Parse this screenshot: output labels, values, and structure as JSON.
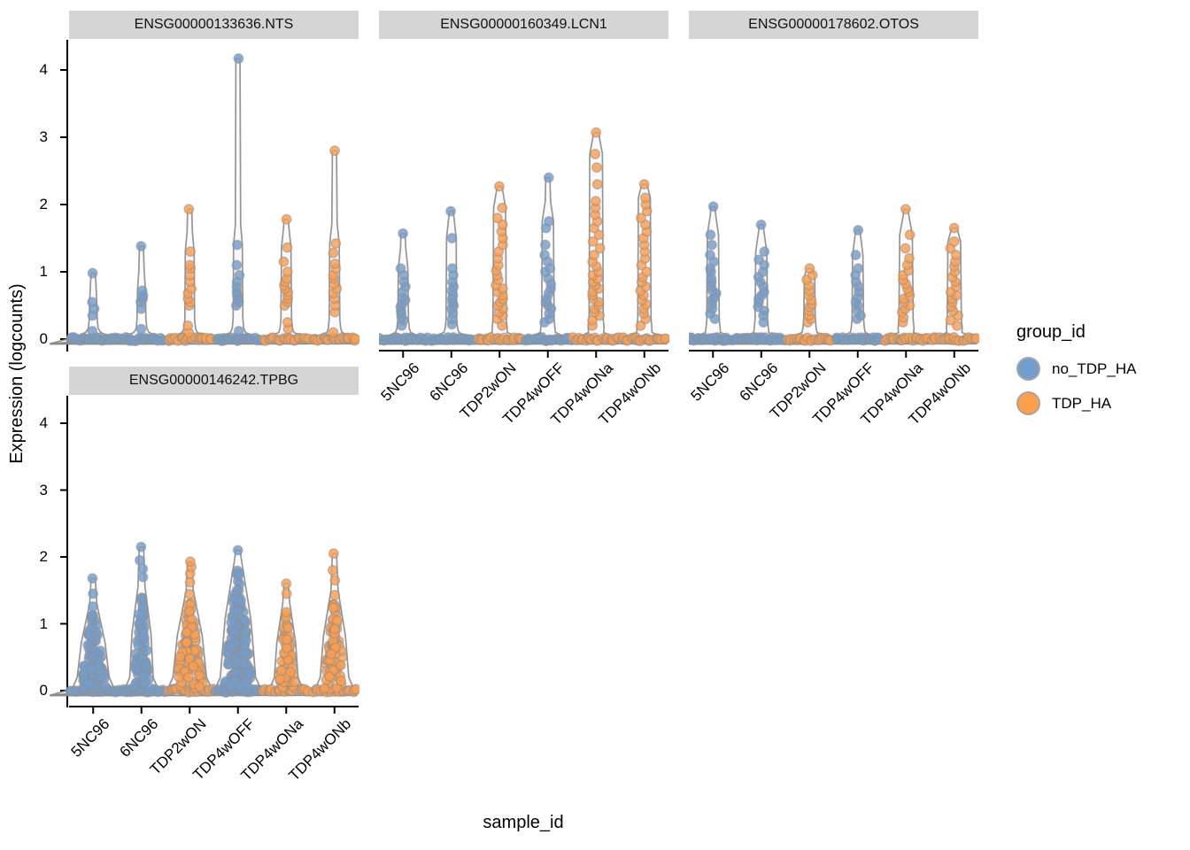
{
  "figure": {
    "background": "#ffffff"
  },
  "chart_data": {
    "type": "violin-jitter",
    "facet_by": "gene",
    "xlabel": "sample_id",
    "ylabel": "Expression (logcounts)",
    "yticks": [
      0,
      1,
      2,
      3,
      4
    ],
    "ylim": [
      0,
      4.4
    ],
    "grid": "off",
    "samples": [
      "5NC96",
      "6NC96",
      "TDP2wON",
      "TDP4wOFF",
      "TDP4wONa",
      "TDP4wONb"
    ],
    "sample_groups": {
      "5NC96": "no_TDP_HA",
      "6NC96": "no_TDP_HA",
      "TDP2wON": "TDP_HA",
      "TDP4wOFF": "no_TDP_HA",
      "TDP4wONa": "TDP_HA",
      "TDP4wONb": "TDP_HA"
    },
    "group_colors": {
      "no_TDP_HA": "#729ECE",
      "TDP_HA": "#FF9E4A"
    },
    "style_colors": {
      "strip_bg": "#D5D5D5",
      "axis": "#000000",
      "violin_outline": "#8a8a8a",
      "violin_fill": "#f6f6f6",
      "point_stroke": "#8f8f8f"
    },
    "legend": {
      "title": "group_id",
      "items": [
        {
          "label": "no_TDP_HA",
          "color": "#729ECE"
        },
        {
          "label": "TDP_HA",
          "color": "#FF9E4A"
        }
      ]
    },
    "panels": [
      {
        "gene": "ENSG00000133636.NTS",
        "violins": [
          {
            "sample": "5NC96",
            "group": "no_TDP_HA",
            "shape": "stem",
            "sw": 4.5,
            "n_zero": 22,
            "max": 0.98,
            "upper": [
              0.12,
              0.35,
              0.45,
              0.55,
              0.98
            ]
          },
          {
            "sample": "6NC96",
            "group": "no_TDP_HA",
            "shape": "stem",
            "sw": 5,
            "n_zero": 22,
            "max": 1.38,
            "upper": [
              0.15,
              0.45,
              0.55,
              0.6,
              0.65,
              0.72,
              1.38
            ]
          },
          {
            "sample": "TDP2wON",
            "group": "TDP_HA",
            "shape": "stem",
            "sw": 5.5,
            "n_zero": 22,
            "max": 1.93,
            "upper": [
              0.1,
              0.2,
              0.5,
              0.55,
              0.6,
              0.68,
              0.75,
              0.85,
              0.95,
              1.05,
              1.1,
              1.3,
              1.93
            ]
          },
          {
            "sample": "TDP4wOFF",
            "group": "no_TDP_HA",
            "shape": "stem",
            "sw": 5.5,
            "n_zero": 22,
            "max": 4.17,
            "upper": [
              0.12,
              0.5,
              0.55,
              0.6,
              0.65,
              0.7,
              0.78,
              0.85,
              0.95,
              1.1,
              1.4,
              4.17
            ]
          },
          {
            "sample": "TDP4wONa",
            "group": "TDP_HA",
            "shape": "stem",
            "sw": 6,
            "n_zero": 22,
            "max": 1.78,
            "upper": [
              0.15,
              0.25,
              0.5,
              0.55,
              0.6,
              0.65,
              0.7,
              0.75,
              0.8,
              0.85,
              0.9,
              1.0,
              1.15,
              1.36,
              1.78
            ]
          },
          {
            "sample": "TDP4wONb",
            "group": "TDP_HA",
            "shape": "stem",
            "sw": 6,
            "n_zero": 22,
            "max": 2.8,
            "upper": [
              0.1,
              0.4,
              0.5,
              0.6,
              0.68,
              0.75,
              0.82,
              0.9,
              0.95,
              1.05,
              1.12,
              1.28,
              1.42,
              2.8
            ]
          }
        ]
      },
      {
        "gene": "ENSG00000160349.LCN1",
        "violins": [
          {
            "sample": "5NC96",
            "group": "no_TDP_HA",
            "shape": "stem",
            "sw": 6,
            "n_zero": 22,
            "max": 1.57,
            "upper": [
              0.2,
              0.28,
              0.33,
              0.38,
              0.42,
              0.48,
              0.52,
              0.58,
              0.62,
              0.7,
              0.78,
              0.85,
              0.95,
              1.05,
              1.57
            ]
          },
          {
            "sample": "6NC96",
            "group": "no_TDP_HA",
            "shape": "stem",
            "sw": 6,
            "n_zero": 22,
            "max": 1.9,
            "upper": [
              0.22,
              0.3,
              0.38,
              0.45,
              0.5,
              0.55,
              0.6,
              0.65,
              0.72,
              0.78,
              0.85,
              0.95,
              1.05,
              1.5,
              1.9
            ]
          },
          {
            "sample": "TDP2wON",
            "group": "TDP_HA",
            "shape": "stem",
            "sw": 7.5,
            "n_zero": 22,
            "max": 2.27,
            "upper": [
              0.2,
              0.3,
              0.35,
              0.4,
              0.45,
              0.5,
              0.55,
              0.6,
              0.65,
              0.7,
              0.75,
              0.8,
              0.88,
              0.95,
              1.02,
              1.1,
              1.2,
              1.3,
              1.4,
              1.5,
              1.6,
              1.7,
              1.8,
              1.95,
              2.27
            ]
          },
          {
            "sample": "TDP4wOFF",
            "group": "no_TDP_HA",
            "shape": "stem",
            "sw": 7,
            "n_zero": 22,
            "max": 2.4,
            "upper": [
              0.25,
              0.3,
              0.38,
              0.45,
              0.5,
              0.55,
              0.6,
              0.68,
              0.75,
              0.82,
              0.9,
              1.0,
              1.05,
              1.15,
              1.25,
              1.4,
              1.65,
              1.75,
              2.4
            ]
          },
          {
            "sample": "TDP4wONa",
            "group": "TDP_HA",
            "shape": "stem",
            "sw": 8,
            "n_zero": 22,
            "max": 3.07,
            "upper": [
              0.2,
              0.28,
              0.35,
              0.4,
              0.45,
              0.5,
              0.55,
              0.6,
              0.65,
              0.7,
              0.75,
              0.8,
              0.85,
              0.9,
              0.95,
              1.0,
              1.08,
              1.15,
              1.25,
              1.35,
              1.45,
              1.55,
              1.65,
              1.75,
              1.85,
              1.95,
              2.05,
              2.3,
              2.55,
              2.75,
              3.07
            ]
          },
          {
            "sample": "TDP4wONb",
            "group": "TDP_HA",
            "shape": "stem",
            "sw": 7.5,
            "n_zero": 22,
            "max": 2.3,
            "upper": [
              0.2,
              0.3,
              0.38,
              0.45,
              0.52,
              0.58,
              0.65,
              0.72,
              0.78,
              0.85,
              0.92,
              1.0,
              1.1,
              1.2,
              1.3,
              1.4,
              1.5,
              1.6,
              1.7,
              1.8,
              1.9,
              2.0,
              2.1,
              2.3
            ]
          }
        ]
      },
      {
        "gene": "ENSG00000178602.OTOS",
        "violins": [
          {
            "sample": "5NC96",
            "group": "no_TDP_HA",
            "shape": "stem",
            "sw": 7,
            "n_zero": 22,
            "max": 1.97,
            "upper": [
              0.3,
              0.38,
              0.45,
              0.52,
              0.58,
              0.62,
              0.68,
              0.72,
              0.78,
              0.85,
              0.9,
              1.0,
              1.05,
              1.15,
              1.25,
              1.4,
              1.55,
              1.97
            ]
          },
          {
            "sample": "6NC96",
            "group": "no_TDP_HA",
            "shape": "stem",
            "sw": 7,
            "n_zero": 22,
            "max": 1.7,
            "upper": [
              0.25,
              0.35,
              0.42,
              0.48,
              0.55,
              0.6,
              0.65,
              0.7,
              0.78,
              0.85,
              0.92,
              1.0,
              1.1,
              1.18,
              1.3,
              1.7
            ]
          },
          {
            "sample": "TDP2wON",
            "group": "TDP_HA",
            "shape": "stem",
            "sw": 6.5,
            "n_zero": 22,
            "max": 1.05,
            "upper": [
              0.25,
              0.3,
              0.35,
              0.42,
              0.48,
              0.52,
              0.58,
              0.65,
              0.72,
              0.8,
              0.88,
              0.95,
              1.05
            ]
          },
          {
            "sample": "TDP4wOFF",
            "group": "no_TDP_HA",
            "shape": "stem",
            "sw": 6.5,
            "n_zero": 22,
            "max": 1.62,
            "upper": [
              0.3,
              0.35,
              0.42,
              0.5,
              0.55,
              0.62,
              0.7,
              0.78,
              0.85,
              0.95,
              1.05,
              1.25,
              1.62
            ]
          },
          {
            "sample": "TDP4wONa",
            "group": "TDP_HA",
            "shape": "stem",
            "sw": 8,
            "n_zero": 22,
            "max": 1.93,
            "upper": [
              0.25,
              0.32,
              0.4,
              0.45,
              0.5,
              0.55,
              0.6,
              0.65,
              0.7,
              0.75,
              0.82,
              0.88,
              0.95,
              1.02,
              1.1,
              1.2,
              1.35,
              1.55,
              1.93
            ]
          },
          {
            "sample": "TDP4wONb",
            "group": "TDP_HA",
            "shape": "stem",
            "sw": 8,
            "n_zero": 22,
            "max": 1.65,
            "upper": [
              0.2,
              0.28,
              0.35,
              0.42,
              0.48,
              0.55,
              0.6,
              0.65,
              0.7,
              0.78,
              0.85,
              0.92,
              1.0,
              1.08,
              1.15,
              1.25,
              1.35,
              1.45,
              1.65
            ]
          }
        ]
      },
      {
        "gene": "ENSG00000146242.TPBG",
        "violins": [
          {
            "sample": "5NC96",
            "group": "no_TDP_HA",
            "shape": "cone",
            "cw": 19,
            "dense_max": 1.3,
            "n_body": 90,
            "n_zero": 22,
            "max": 1.68,
            "upper": [
              1.45,
              1.68
            ]
          },
          {
            "sample": "6NC96",
            "group": "no_TDP_HA",
            "shape": "cone",
            "cw": 14,
            "dense_max": 1.55,
            "n_body": 80,
            "n_zero": 22,
            "max": 2.15,
            "upper": [
              1.7,
              1.82,
              1.95,
              2.15
            ]
          },
          {
            "sample": "TDP2wON",
            "group": "TDP_HA",
            "shape": "cone",
            "cw": 20,
            "dense_max": 1.5,
            "n_body": 100,
            "n_zero": 22,
            "max": 1.93,
            "upper": [
              1.62,
              1.75,
              1.85,
              1.93
            ]
          },
          {
            "sample": "TDP4wOFF",
            "group": "no_TDP_HA",
            "shape": "cone",
            "cw": 21,
            "dense_max": 1.95,
            "n_body": 130,
            "n_zero": 22,
            "max": 2.1,
            "upper": [
              2.1
            ]
          },
          {
            "sample": "TDP4wONa",
            "group": "TDP_HA",
            "shape": "cone",
            "cw": 14,
            "dense_max": 1.3,
            "n_body": 65,
            "n_zero": 22,
            "max": 1.6,
            "upper": [
              1.45,
              1.6
            ]
          },
          {
            "sample": "TDP4wONb",
            "group": "TDP_HA",
            "shape": "cone",
            "cw": 17,
            "dense_max": 1.5,
            "n_body": 80,
            "n_zero": 22,
            "max": 2.05,
            "upper": [
              1.65,
              1.8,
              2.05
            ]
          }
        ]
      }
    ]
  }
}
